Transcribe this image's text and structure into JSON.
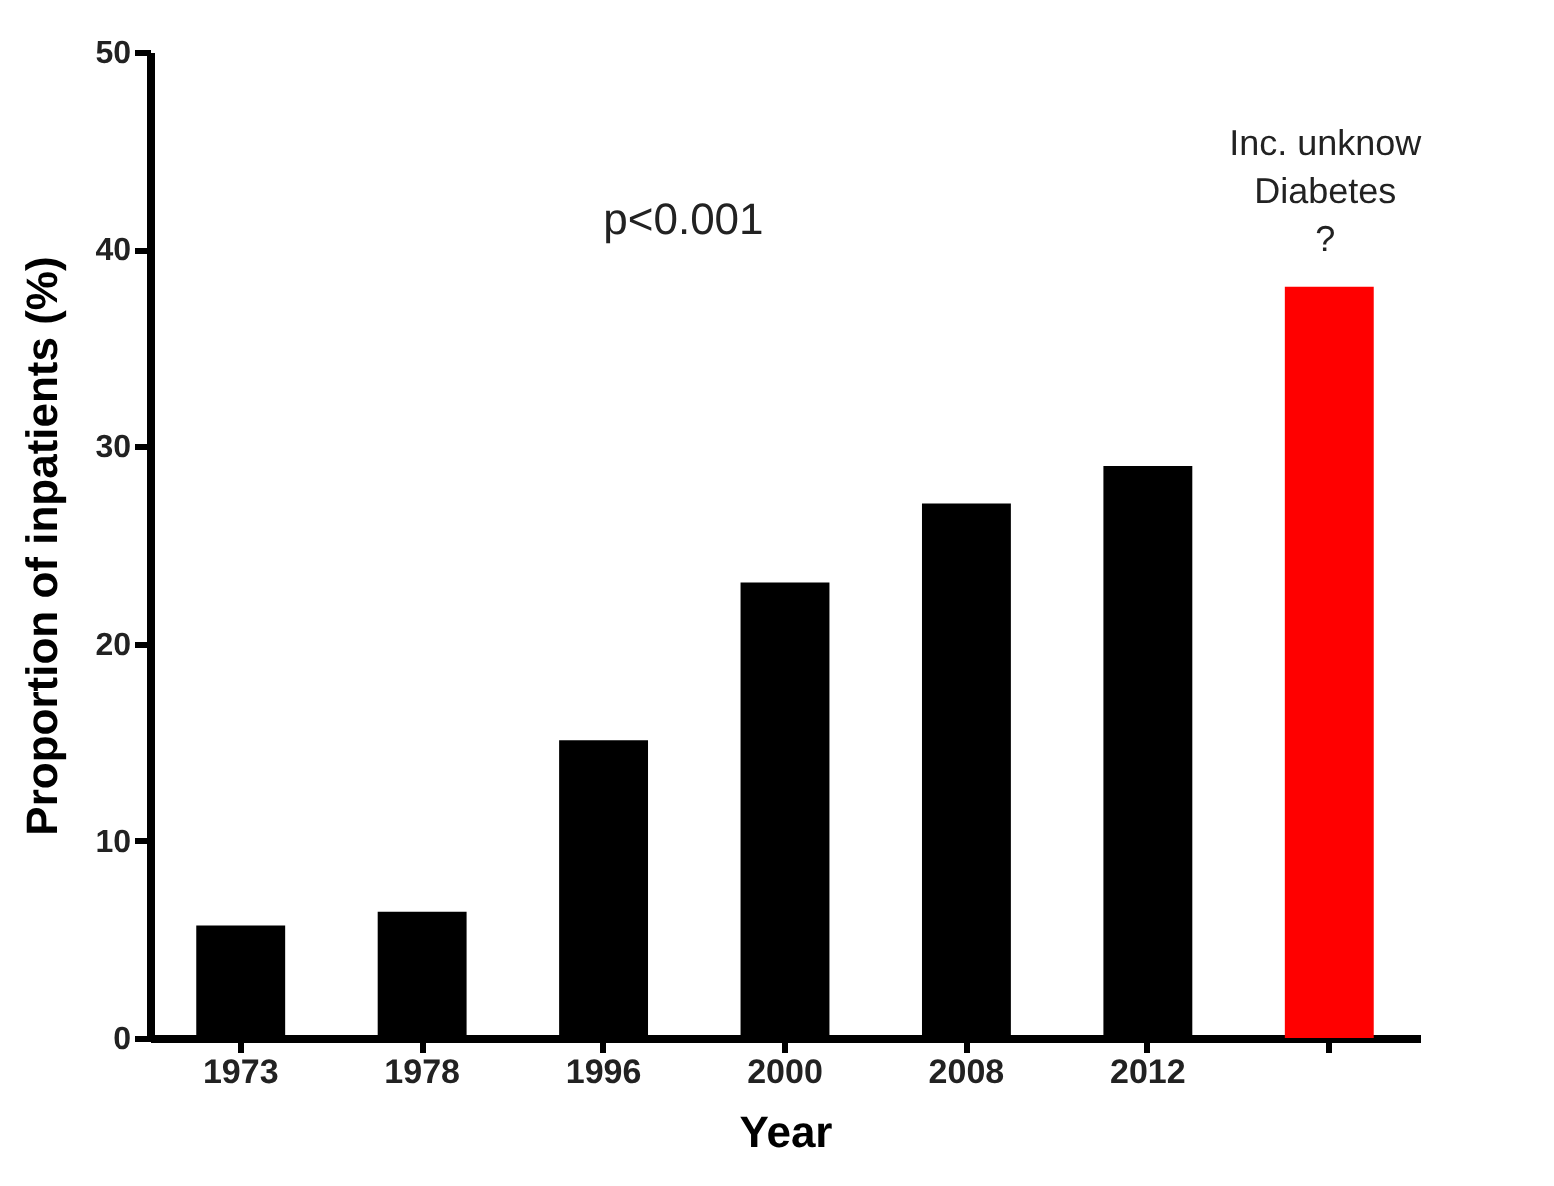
{
  "chart_data": {
    "type": "bar",
    "xlabel": "Year",
    "ylabel": "Proportion of inpatients (%)",
    "categories": [
      "1973",
      "1978",
      "1996",
      "2000",
      "2008",
      "2012",
      null
    ],
    "values": [
      5.7,
      6.4,
      15.1,
      23.1,
      27.1,
      29.0,
      38.1
    ],
    "colors": [
      "#000000",
      "#000000",
      "#000000",
      "#000000",
      "#000000",
      "#000000",
      "#ff0000"
    ],
    "ylim": [
      0,
      50
    ],
    "yticks": [
      0,
      10,
      20,
      30,
      40,
      50
    ],
    "annotations": [
      "p<0.001",
      "Inc. unknow\nDiabetes\n?"
    ]
  }
}
